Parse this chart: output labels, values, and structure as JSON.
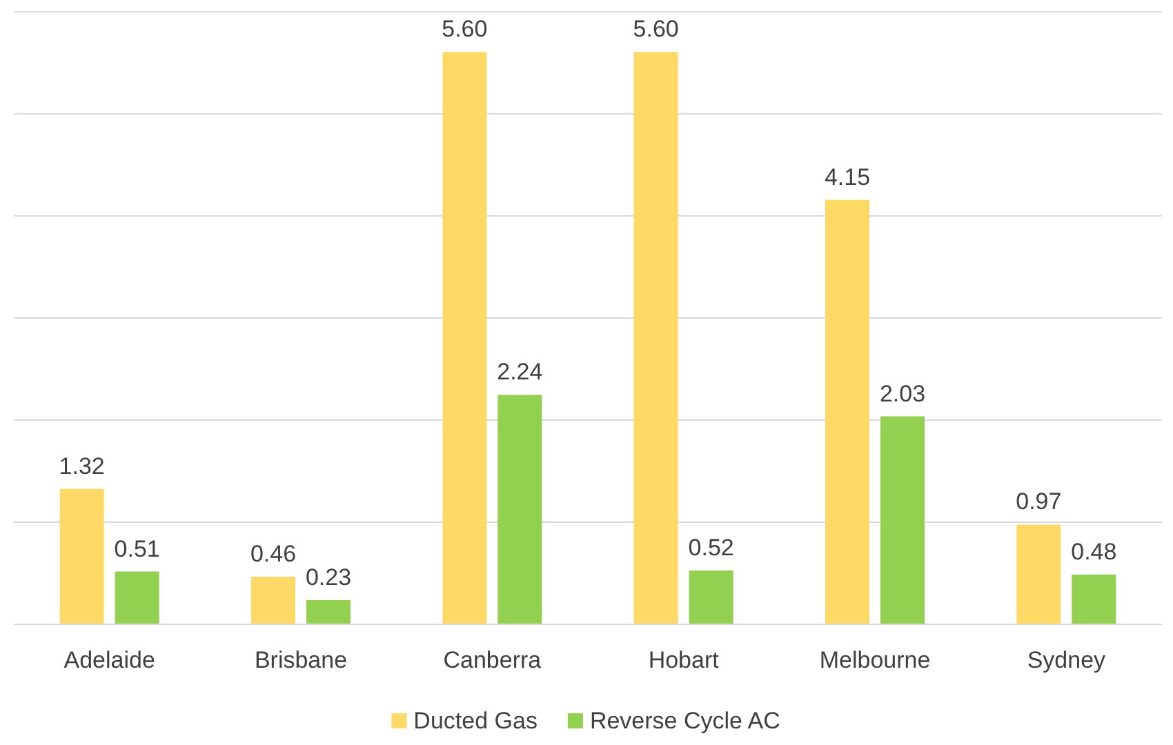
{
  "chart_data": {
    "type": "bar",
    "categories": [
      "Adelaide",
      "Brisbane",
      "Canberra",
      "Hobart",
      "Melbourne",
      "Sydney"
    ],
    "series": [
      {
        "name": "Ducted Gas",
        "color": "#ffd966",
        "values": [
          1.32,
          0.46,
          5.6,
          5.6,
          4.15,
          0.97
        ],
        "value_labels": [
          "1.32",
          "0.46",
          "5.60",
          "5.60",
          "4.15",
          "0.97"
        ]
      },
      {
        "name": "Reverse Cycle AC",
        "color": "#92d050",
        "values": [
          0.51,
          0.23,
          2.24,
          0.52,
          2.03,
          0.48
        ],
        "value_labels": [
          "0.51",
          "0.23",
          "2.24",
          "0.52",
          "2.03",
          "0.48"
        ]
      }
    ],
    "ylim": [
      0,
      6
    ],
    "yticks": [
      {
        "value": 0,
        "label": null
      },
      {
        "value": 1,
        "label": null
      },
      {
        "value": 2,
        "label": null
      },
      {
        "value": 3,
        "label": null
      },
      {
        "value": 4,
        "label": null
      },
      {
        "value": 5,
        "label": null
      },
      {
        "value": 6,
        "label": null
      }
    ],
    "tick_labels": "x",
    "grid": "y",
    "legend": "bottom"
  }
}
